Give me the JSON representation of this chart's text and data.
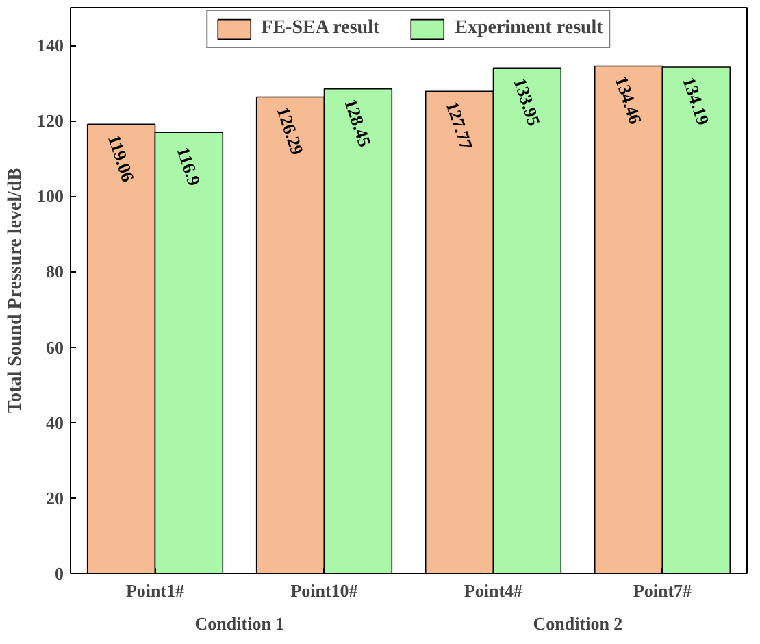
{
  "chart_data": {
    "type": "bar",
    "categories": [
      "Point1#",
      "Point10#",
      "Point4#",
      "Point7#"
    ],
    "series": [
      {
        "name": "FE-SEA result",
        "color": "#f7bb93",
        "values": [
          119.06,
          126.29,
          127.77,
          134.46
        ]
      },
      {
        "name": "Experiment result",
        "color": "#aaf7aa",
        "values": [
          116.9,
          128.45,
          133.95,
          134.19
        ]
      }
    ],
    "ylabel": "Total Sound Pressure level/dB",
    "ylim": [
      0,
      150
    ],
    "yticks": [
      0,
      20,
      40,
      60,
      80,
      100,
      120,
      140
    ],
    "data_labels": true,
    "grid": false,
    "legend": "top",
    "annotations": [
      "Condition 1",
      "Condition 2"
    ]
  }
}
